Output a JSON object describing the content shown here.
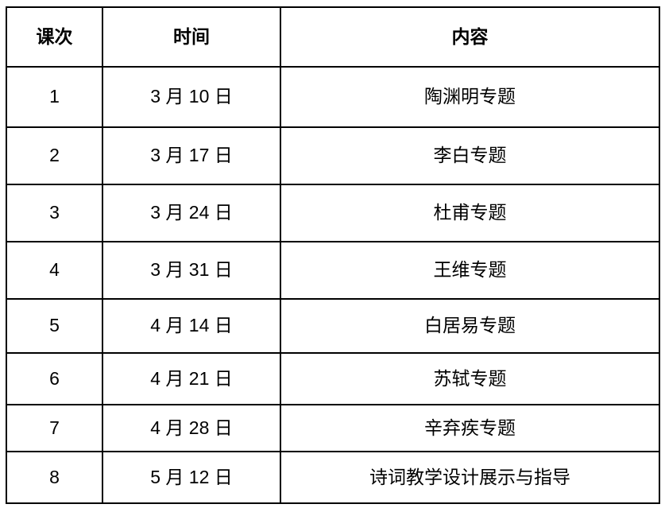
{
  "colors": {
    "border": "#000000",
    "text": "#000000",
    "background": "#ffffff"
  },
  "header": {
    "col_no": "课次",
    "col_time": "时间",
    "col_content": "内容"
  },
  "rows": [
    {
      "no": "1",
      "time": "3 月 10 日",
      "content": "陶渊明专题"
    },
    {
      "no": "2",
      "time": "3 月 17 日",
      "content": "李白专题"
    },
    {
      "no": "3",
      "time": "3 月 24 日",
      "content": "杜甫专题"
    },
    {
      "no": "4",
      "time": "3 月 31 日",
      "content": "王维专题"
    },
    {
      "no": "5",
      "time": "4 月 14 日",
      "content": "白居易专题"
    },
    {
      "no": "6",
      "time": "4 月 21 日",
      "content": "苏轼专题"
    },
    {
      "no": "7",
      "time": "4 月 28 日",
      "content": "辛弃疾专题"
    },
    {
      "no": "8",
      "time": "5 月 12 日",
      "content": "诗词教学设计展示与指导"
    }
  ]
}
